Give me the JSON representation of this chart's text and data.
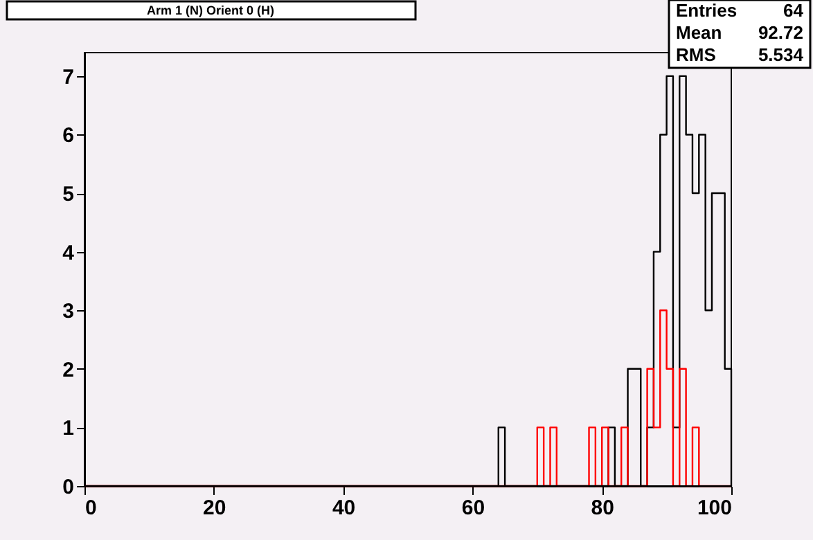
{
  "chart_data": {
    "type": "histogram",
    "title": "Arm 1 (N) Orient 0 (H)",
    "bins": [
      0,
      1,
      2,
      3,
      4,
      5,
      6,
      7,
      8,
      9,
      10,
      11,
      12,
      13,
      14,
      15,
      16,
      17,
      18,
      19,
      20,
      21,
      22,
      23,
      24,
      25,
      26,
      27,
      28,
      29,
      30,
      31,
      32,
      33,
      34,
      35,
      36,
      37,
      38,
      39,
      40,
      41,
      42,
      43,
      44,
      45,
      46,
      47,
      48,
      49,
      50,
      51,
      52,
      53,
      54,
      55,
      56,
      57,
      58,
      59,
      60,
      61,
      62,
      63,
      64,
      65,
      66,
      67,
      68,
      69,
      70,
      71,
      72,
      73,
      74,
      75,
      76,
      77,
      78,
      79,
      80,
      81,
      82,
      83,
      84,
      85,
      86,
      87,
      88,
      89,
      90,
      91,
      92,
      93,
      94,
      95,
      96,
      97,
      98,
      99,
      100
    ],
    "series": [
      {
        "color": "#000000",
        "values": [
          0,
          0,
          0,
          0,
          0,
          0,
          0,
          0,
          0,
          0,
          0,
          0,
          0,
          0,
          0,
          0,
          0,
          0,
          0,
          0,
          0,
          0,
          0,
          0,
          0,
          0,
          0,
          0,
          0,
          0,
          0,
          0,
          0,
          0,
          0,
          0,
          0,
          0,
          0,
          0,
          0,
          0,
          0,
          0,
          0,
          0,
          0,
          0,
          0,
          0,
          0,
          0,
          0,
          0,
          0,
          0,
          0,
          0,
          0,
          0,
          0,
          0,
          0,
          0,
          1,
          0,
          0,
          0,
          0,
          0,
          0,
          0,
          0,
          0,
          0,
          0,
          0,
          0,
          0,
          0,
          0,
          1,
          0,
          0,
          2,
          2,
          0,
          1,
          4,
          6,
          7,
          1,
          7,
          6,
          5,
          6,
          3,
          5,
          5,
          2
        ]
      },
      {
        "color": "#ff0000",
        "values": [
          0,
          0,
          0,
          0,
          0,
          0,
          0,
          0,
          0,
          0,
          0,
          0,
          0,
          0,
          0,
          0,
          0,
          0,
          0,
          0,
          0,
          0,
          0,
          0,
          0,
          0,
          0,
          0,
          0,
          0,
          0,
          0,
          0,
          0,
          0,
          0,
          0,
          0,
          0,
          0,
          0,
          0,
          0,
          0,
          0,
          0,
          0,
          0,
          0,
          0,
          0,
          0,
          0,
          0,
          0,
          0,
          0,
          0,
          0,
          0,
          0,
          0,
          0,
          0,
          0,
          0,
          0,
          0,
          0,
          0,
          1,
          0,
          1,
          0,
          0,
          0,
          0,
          0,
          1,
          0,
          1,
          0,
          0,
          1,
          0,
          0,
          0,
          2,
          1,
          3,
          2,
          0,
          2,
          0,
          1,
          0,
          0,
          0,
          0,
          0
        ]
      }
    ],
    "xlim": [
      0,
      100
    ],
    "xticks": [
      0,
      20,
      40,
      60,
      80,
      100
    ],
    "ylim": [
      0,
      7.4
    ],
    "yticks": [
      0,
      1,
      2,
      3,
      4,
      5,
      6,
      7
    ],
    "grid": false,
    "annotations": [
      "Entries",
      "64",
      "Mean",
      "92.72",
      "RMS",
      "5.534"
    ]
  }
}
